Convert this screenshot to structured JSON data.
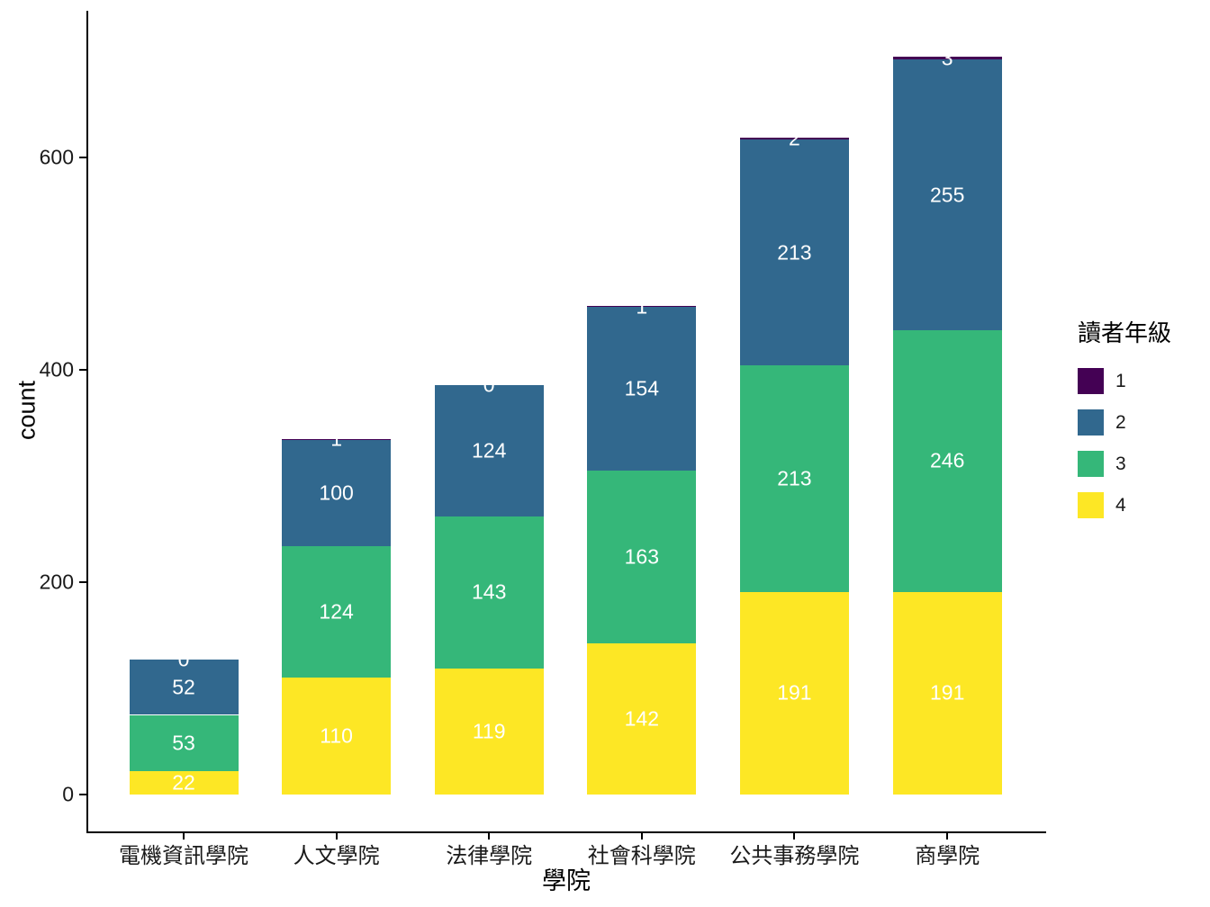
{
  "chart_data": {
    "type": "bar",
    "stacked": true,
    "title": "",
    "xlabel": "學院",
    "ylabel": "count",
    "categories": [
      "電機資訊學院",
      "人文學院",
      "法律學院",
      "社會科學院",
      "公共事務學院",
      "商學院"
    ],
    "series": [
      {
        "name": "4",
        "color": "#FDE725",
        "values": [
          22,
          110,
          119,
          142,
          191,
          191
        ]
      },
      {
        "name": "3",
        "color": "#35B779",
        "values": [
          53,
          124,
          143,
          163,
          213,
          246
        ]
      },
      {
        "name": "2",
        "color": "#31688E",
        "values": [
          52,
          100,
          124,
          154,
          213,
          255
        ]
      },
      {
        "name": "1",
        "color": "#440154",
        "values": [
          0,
          1,
          0,
          1,
          2,
          3
        ]
      }
    ],
    "totals": [
      127,
      335,
      386,
      460,
      619,
      695
    ],
    "y_ticks": [
      0,
      200,
      400,
      600
    ],
    "ylim": [
      0,
      720
    ],
    "grid": false,
    "bar_label_color": "#ffffff",
    "legend": {
      "title": "讀者年級",
      "position": "right",
      "entries": [
        {
          "label": "1",
          "color": "#440154"
        },
        {
          "label": "2",
          "color": "#31688E"
        },
        {
          "label": "3",
          "color": "#35B779"
        },
        {
          "label": "4",
          "color": "#FDE725"
        }
      ]
    }
  }
}
